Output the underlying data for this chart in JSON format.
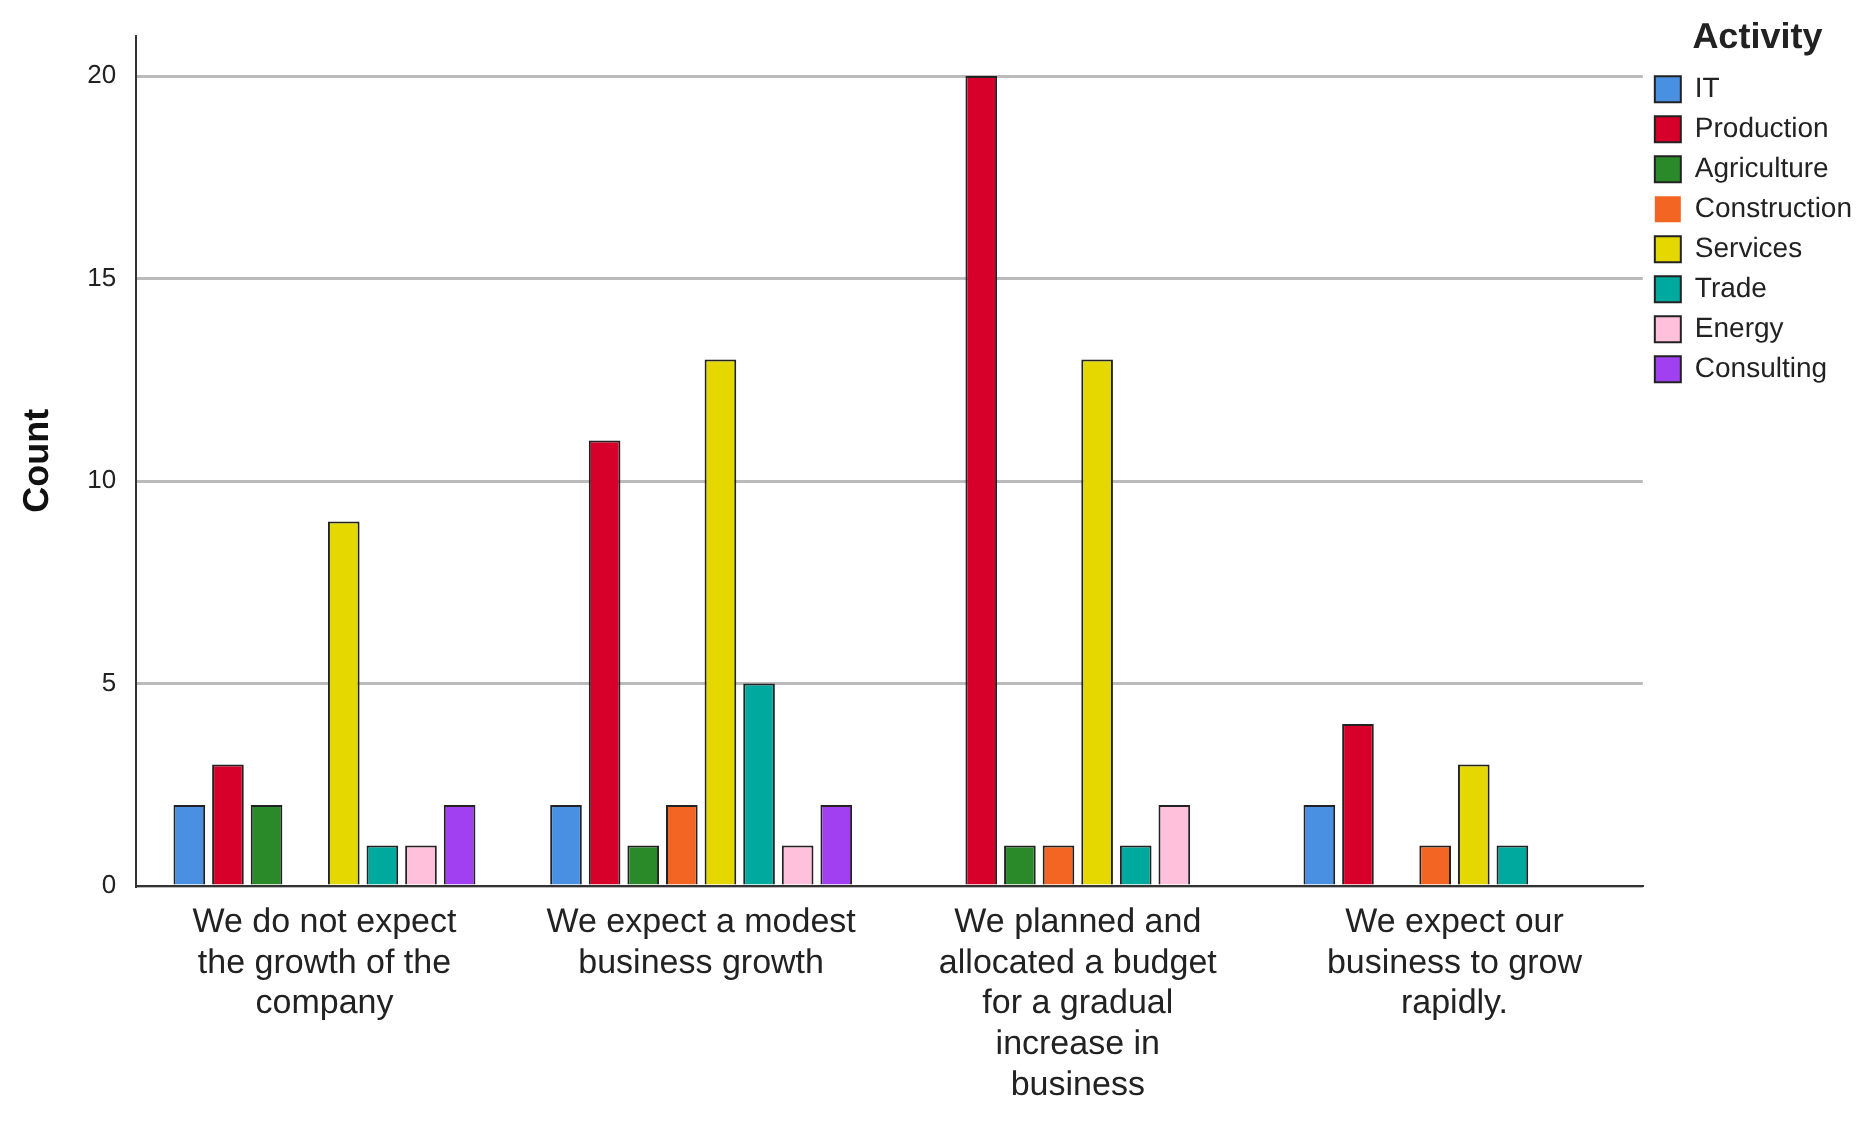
{
  "chart_data": {
    "type": "bar",
    "ylabel": "Count",
    "legend_title": "Activity",
    "legend": "right",
    "categories": [
      "We do not expect the growth of the company",
      "We expect a modest business growth",
      "We planned and allocated a budget for a gradual increase in business",
      "We expect our business to grow rapidly."
    ],
    "series": [
      {
        "name": "IT",
        "color": "#4a90e2",
        "values": [
          2,
          2,
          0,
          2
        ]
      },
      {
        "name": "Production",
        "color": "#d6002a",
        "values": [
          3,
          11,
          20,
          4
        ]
      },
      {
        "name": "Agriculture",
        "color": "#2a8a2a",
        "values": [
          2,
          1,
          1,
          0
        ]
      },
      {
        "name": "Construction",
        "color": "#f26522",
        "values": [
          0,
          2,
          1,
          1
        ]
      },
      {
        "name": "Services",
        "color": "#e5d800",
        "values": [
          9,
          13,
          13,
          3
        ]
      },
      {
        "name": "Trade",
        "color": "#00a99d",
        "values": [
          1,
          5,
          1,
          1
        ]
      },
      {
        "name": "Energy",
        "color": "#ffc0db",
        "values": [
          1,
          1,
          2,
          0
        ]
      },
      {
        "name": "Consulting",
        "color": "#a040f0",
        "values": [
          2,
          2,
          0,
          0
        ]
      }
    ],
    "ylim": [
      0,
      21
    ],
    "yticks": [
      0,
      5,
      10,
      15,
      20
    ],
    "grid": "y"
  }
}
